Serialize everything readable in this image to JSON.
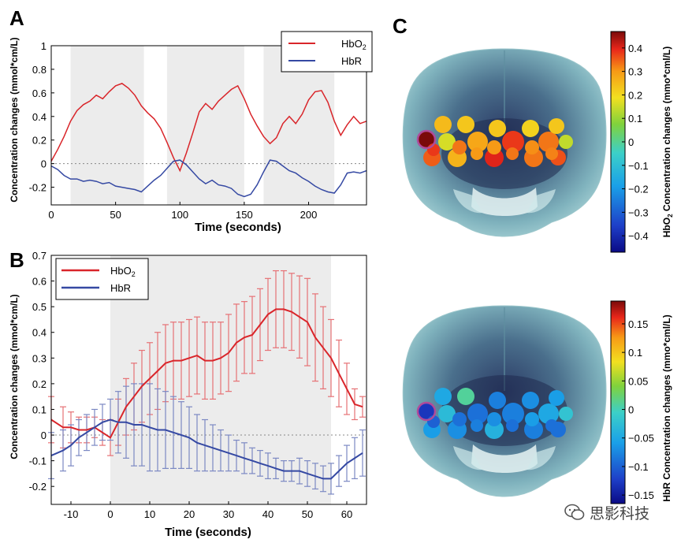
{
  "figure": {
    "panel_labels": [
      "A",
      "B",
      "C"
    ],
    "watermark": "思影科技"
  },
  "chart_data": [
    {
      "panel": "A",
      "type": "line",
      "xlabel": "Time (seconds)",
      "ylabel": "Concentration changes (mmol*cm/L)",
      "xlim": [
        0,
        245
      ],
      "ylim": [
        -0.35,
        1.0
      ],
      "xticks": [
        0,
        50,
        100,
        150,
        200
      ],
      "yticks": [
        -0.2,
        0,
        0.2,
        0.4,
        0.6,
        0.8,
        1
      ],
      "ytick_labels": [
        "-0.2",
        "0",
        "0.2",
        "0.4",
        "0.6",
        "0.8",
        "1"
      ],
      "legend": "top-right",
      "grid": false,
      "zero_line": "dotted",
      "shaded_intervals": [
        [
          15,
          72
        ],
        [
          90,
          150
        ],
        [
          165,
          220
        ]
      ],
      "series": [
        {
          "name": "HbO2",
          "name_main": "HbO",
          "name_sub": "2",
          "color": "#d9252a",
          "x": [
            0,
            5,
            10,
            15,
            20,
            25,
            30,
            35,
            40,
            45,
            50,
            55,
            60,
            65,
            70,
            75,
            80,
            85,
            90,
            95,
            100,
            105,
            110,
            115,
            120,
            125,
            130,
            135,
            140,
            145,
            150,
            155,
            160,
            165,
            170,
            175,
            180,
            185,
            190,
            195,
            200,
            205,
            210,
            215,
            220,
            225,
            230,
            235,
            240,
            245
          ],
          "y": [
            0.02,
            0.12,
            0.23,
            0.36,
            0.45,
            0.5,
            0.53,
            0.58,
            0.55,
            0.61,
            0.66,
            0.68,
            0.64,
            0.58,
            0.49,
            0.43,
            0.38,
            0.3,
            0.18,
            0.05,
            -0.06,
            0.09,
            0.26,
            0.44,
            0.51,
            0.46,
            0.53,
            0.58,
            0.63,
            0.66,
            0.55,
            0.42,
            0.32,
            0.23,
            0.17,
            0.22,
            0.34,
            0.4,
            0.34,
            0.42,
            0.54,
            0.61,
            0.62,
            0.52,
            0.36,
            0.24,
            0.33,
            0.4,
            0.34,
            0.36
          ]
        },
        {
          "name": "HbR",
          "color": "#3549a3",
          "x": [
            0,
            5,
            10,
            15,
            20,
            25,
            30,
            35,
            40,
            45,
            50,
            55,
            60,
            65,
            70,
            75,
            80,
            85,
            90,
            95,
            100,
            105,
            110,
            115,
            120,
            125,
            130,
            135,
            140,
            145,
            150,
            155,
            160,
            165,
            170,
            175,
            180,
            185,
            190,
            195,
            200,
            205,
            210,
            215,
            220,
            225,
            230,
            235,
            240,
            245
          ],
          "y": [
            -0.02,
            -0.05,
            -0.1,
            -0.13,
            -0.13,
            -0.15,
            -0.14,
            -0.15,
            -0.17,
            -0.16,
            -0.19,
            -0.2,
            -0.21,
            -0.22,
            -0.24,
            -0.19,
            -0.14,
            -0.1,
            -0.04,
            0.02,
            0.03,
            -0.01,
            -0.07,
            -0.13,
            -0.17,
            -0.14,
            -0.18,
            -0.19,
            -0.21,
            -0.26,
            -0.28,
            -0.26,
            -0.18,
            -0.07,
            0.03,
            0.02,
            -0.02,
            -0.06,
            -0.08,
            -0.12,
            -0.15,
            -0.19,
            -0.22,
            -0.24,
            -0.25,
            -0.18,
            -0.08,
            -0.07,
            -0.08,
            -0.06
          ]
        }
      ]
    },
    {
      "panel": "B",
      "type": "line",
      "xlabel": "Time (seconds)",
      "ylabel": "Concentration changes (mmol*cm/L)",
      "xlim": [
        -15,
        65
      ],
      "ylim": [
        -0.27,
        0.7
      ],
      "xticks": [
        -10,
        0,
        10,
        20,
        30,
        40,
        50,
        60
      ],
      "yticks": [
        -0.2,
        -0.1,
        0,
        0.1,
        0.2,
        0.3,
        0.4,
        0.5,
        0.6,
        0.7
      ],
      "ytick_labels": [
        "-0.2",
        "-0.1",
        "0",
        "0.1",
        "0.2",
        "0.3",
        "0.4",
        "0.5",
        "0.6",
        "0.7"
      ],
      "legend": "top-left",
      "grid": false,
      "zero_line": "dotted",
      "shaded_intervals": [
        [
          0,
          56
        ]
      ],
      "error_bars": true,
      "series": [
        {
          "name": "HbO2",
          "name_main": "HbO",
          "name_sub": "2",
          "color": "#d9252a",
          "x": [
            -15,
            -12,
            -10,
            -8,
            -6,
            -4,
            -2,
            0,
            2,
            4,
            6,
            8,
            10,
            12,
            14,
            16,
            18,
            20,
            22,
            24,
            26,
            28,
            30,
            32,
            34,
            36,
            38,
            40,
            42,
            44,
            46,
            48,
            50,
            52,
            54,
            56,
            58,
            60,
            62,
            64
          ],
          "y": [
            0.06,
            0.03,
            0.03,
            0.02,
            0.02,
            0.03,
            0.01,
            -0.01,
            0.05,
            0.11,
            0.15,
            0.19,
            0.22,
            0.25,
            0.28,
            0.29,
            0.29,
            0.3,
            0.31,
            0.29,
            0.29,
            0.3,
            0.32,
            0.36,
            0.38,
            0.39,
            0.43,
            0.47,
            0.49,
            0.49,
            0.48,
            0.46,
            0.44,
            0.38,
            0.34,
            0.3,
            0.24,
            0.18,
            0.12,
            0.11
          ],
          "err": [
            0.09,
            0.08,
            0.06,
            0.05,
            0.05,
            0.04,
            0.05,
            0.07,
            0.09,
            0.11,
            0.13,
            0.14,
            0.14,
            0.15,
            0.15,
            0.15,
            0.15,
            0.15,
            0.15,
            0.15,
            0.15,
            0.14,
            0.15,
            0.15,
            0.14,
            0.15,
            0.14,
            0.14,
            0.15,
            0.15,
            0.15,
            0.16,
            0.17,
            0.17,
            0.16,
            0.15,
            0.13,
            0.1,
            0.06,
            0.04
          ]
        },
        {
          "name": "HbR",
          "color": "#3549a3",
          "x": [
            -15,
            -12,
            -10,
            -8,
            -6,
            -4,
            -2,
            0,
            2,
            4,
            6,
            8,
            10,
            12,
            14,
            16,
            18,
            20,
            22,
            24,
            26,
            28,
            30,
            32,
            34,
            36,
            38,
            40,
            42,
            44,
            46,
            48,
            50,
            52,
            54,
            56,
            58,
            60,
            62,
            64
          ],
          "y": [
            -0.08,
            -0.06,
            -0.04,
            -0.01,
            0.01,
            0.03,
            0.05,
            0.06,
            0.05,
            0.05,
            0.04,
            0.04,
            0.03,
            0.02,
            0.02,
            0.01,
            0.0,
            -0.01,
            -0.03,
            -0.04,
            -0.05,
            -0.06,
            -0.07,
            -0.08,
            -0.09,
            -0.1,
            -0.11,
            -0.12,
            -0.13,
            -0.14,
            -0.14,
            -0.14,
            -0.15,
            -0.16,
            -0.17,
            -0.17,
            -0.14,
            -0.11,
            -0.09,
            -0.07
          ],
          "err": [
            0.09,
            0.08,
            0.08,
            0.07,
            0.07,
            0.07,
            0.07,
            0.08,
            0.12,
            0.14,
            0.16,
            0.16,
            0.17,
            0.16,
            0.15,
            0.14,
            0.13,
            0.12,
            0.11,
            0.1,
            0.09,
            0.08,
            0.07,
            0.06,
            0.06,
            0.05,
            0.05,
            0.05,
            0.04,
            0.04,
            0.04,
            0.05,
            0.05,
            0.05,
            0.05,
            0.06,
            0.06,
            0.07,
            0.08,
            0.09
          ]
        }
      ]
    },
    {
      "panel": "C-top",
      "type": "heatmap",
      "colorbar_label_main": "HbO",
      "colorbar_label_sub": "2",
      "colorbar_label_rest": " Concentration changes (mmo*cml/L)",
      "colorbar_range": [
        -0.47,
        0.47
      ],
      "colorbar_ticks": [
        0.4,
        0.3,
        0.2,
        0.1,
        0,
        -0.1,
        -0.2,
        -0.3,
        -0.4
      ],
      "colorbar_tick_labels": [
        "0.4",
        "0.3",
        "0.2",
        "0.1",
        "0",
        "−0.1",
        "−0.2",
        "−0.3",
        "−0.4"
      ],
      "channel_values": [
        0.47,
        0.25,
        0.23,
        0.23,
        0.21,
        0.23,
        0.14,
        0.16,
        0.28,
        0.38,
        0.33,
        0.35,
        0.26,
        0.4,
        0.33,
        0.36,
        0.33,
        0.3,
        0.31,
        0.38,
        0.3,
        0.33,
        0.32
      ],
      "highlighted_channel": 0
    },
    {
      "panel": "C-bottom",
      "type": "heatmap",
      "colorbar_label": "HbR Concentration changes (mmo*cml/L)",
      "colorbar_range": [
        -0.165,
        0.19
      ],
      "colorbar_ticks": [
        0.15,
        0.1,
        0.05,
        0,
        -0.05,
        -0.1,
        -0.15
      ],
      "colorbar_tick_labels": [
        "0.15",
        "0.1",
        "0.05",
        "0",
        "−0.05",
        "−0.1",
        "−0.15"
      ],
      "channel_values": [
        -0.13,
        -0.05,
        0.01,
        -0.08,
        -0.07,
        -0.06,
        -0.02,
        -0.03,
        -0.09,
        -0.08,
        -0.05,
        -0.06,
        -0.07,
        -0.04,
        -0.08,
        -0.09,
        -0.09,
        -0.07,
        -0.06,
        -0.1,
        -0.08,
        -0.09,
        -0.09
      ],
      "highlighted_channel": 0
    }
  ]
}
